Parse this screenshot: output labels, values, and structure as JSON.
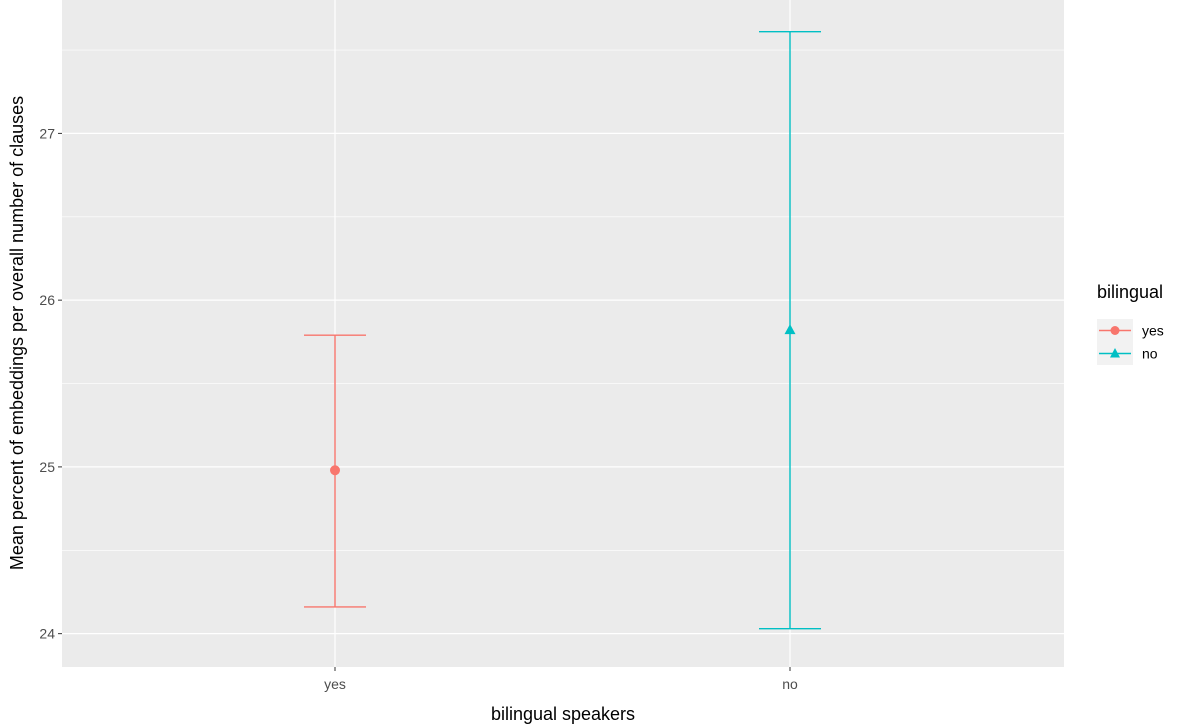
{
  "chart_data": {
    "type": "errorbar",
    "categories": [
      "yes",
      "no"
    ],
    "xlabel": "bilingual speakers",
    "ylabel": "Mean percent of embeddings per overall number of clauses",
    "ylim": [
      23.8,
      27.8
    ],
    "yticks": [
      24,
      25,
      26,
      27
    ],
    "ytick_labels": [
      "24",
      "25",
      "26",
      "27"
    ],
    "grid": true,
    "legend": {
      "title": "bilingual",
      "position": "right",
      "entries": [
        {
          "label": "yes",
          "color": "#F8766D",
          "shape": "circle"
        },
        {
          "label": "no",
          "color": "#00BFC4",
          "shape": "triangle"
        }
      ]
    },
    "series": [
      {
        "category": "yes",
        "mean": 24.98,
        "lower": 24.16,
        "upper": 25.79,
        "color": "#F8766D",
        "shape": "circle"
      },
      {
        "category": "no",
        "mean": 25.82,
        "lower": 24.03,
        "upper": 27.61,
        "color": "#00BFC4",
        "shape": "triangle"
      }
    ]
  },
  "colors": {
    "panel_background": "#EBEBEB",
    "grid_major": "#FFFFFF",
    "legend_key_background": "#F2F2F2"
  }
}
